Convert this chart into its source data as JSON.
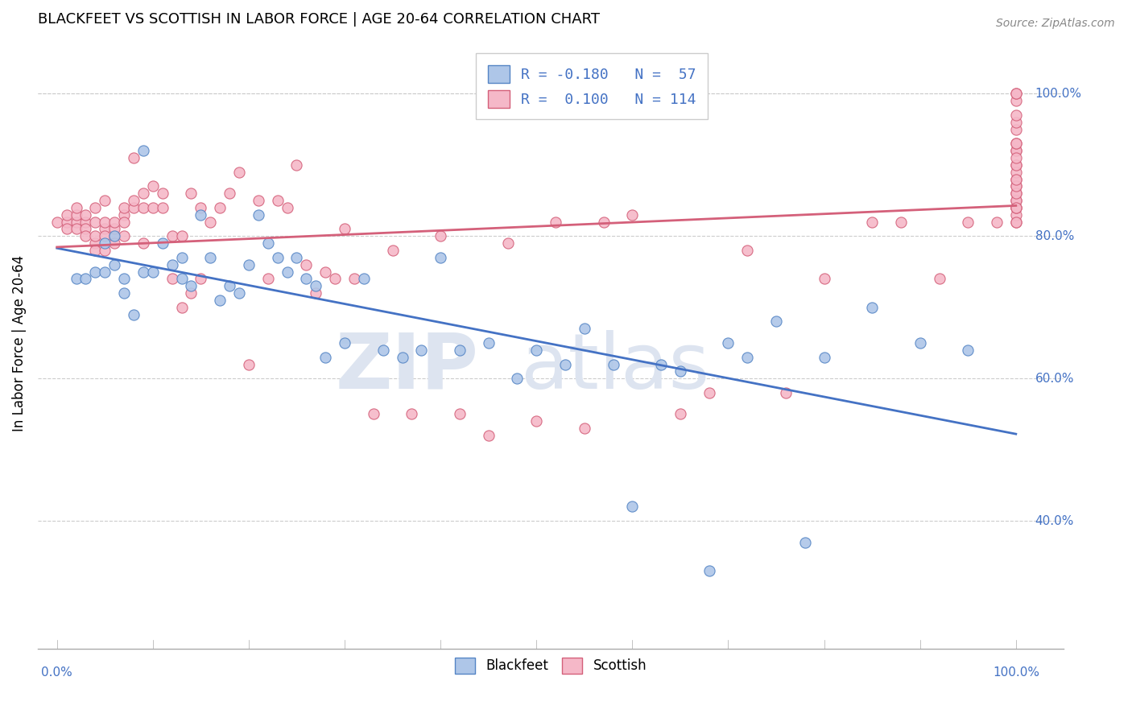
{
  "title": "BLACKFEET VS SCOTTISH IN LABOR FORCE | AGE 20-64 CORRELATION CHART",
  "source": "Source: ZipAtlas.com",
  "ylabel": "In Labor Force | Age 20-64",
  "xlim": [
    -0.02,
    1.05
  ],
  "ylim": [
    0.22,
    1.08
  ],
  "right_yticks": [
    0.4,
    0.6,
    0.8,
    1.0
  ],
  "right_yticklabels": [
    "40.0%",
    "60.0%",
    "80.0%",
    "100.0%"
  ],
  "bottom_xtick_labels_left": "0.0%",
  "bottom_xtick_labels_right": "100.0%",
  "blackfeet_color": "#aec6e8",
  "blackfeet_edge_color": "#5585c5",
  "scottish_color": "#f5b8c8",
  "scottish_edge_color": "#d4607a",
  "blackfeet_line_color": "#4472c4",
  "scottish_line_color": "#d4607a",
  "legend_R_blackfeet": "-0.180",
  "legend_N_blackfeet": "57",
  "legend_R_scottish": "0.100",
  "legend_N_scottish": "114",
  "blackfeet_x": [
    0.02,
    0.03,
    0.04,
    0.05,
    0.05,
    0.06,
    0.06,
    0.07,
    0.07,
    0.08,
    0.09,
    0.09,
    0.1,
    0.11,
    0.12,
    0.13,
    0.13,
    0.14,
    0.15,
    0.16,
    0.17,
    0.18,
    0.19,
    0.2,
    0.21,
    0.22,
    0.23,
    0.24,
    0.25,
    0.26,
    0.27,
    0.28,
    0.3,
    0.32,
    0.34,
    0.36,
    0.38,
    0.4,
    0.42,
    0.45,
    0.48,
    0.5,
    0.53,
    0.55,
    0.58,
    0.6,
    0.63,
    0.65,
    0.68,
    0.7,
    0.72,
    0.75,
    0.78,
    0.8,
    0.85,
    0.9,
    0.95
  ],
  "blackfeet_y": [
    0.74,
    0.74,
    0.75,
    0.75,
    0.79,
    0.76,
    0.8,
    0.72,
    0.74,
    0.69,
    0.92,
    0.75,
    0.75,
    0.79,
    0.76,
    0.77,
    0.74,
    0.73,
    0.83,
    0.77,
    0.71,
    0.73,
    0.72,
    0.76,
    0.83,
    0.79,
    0.77,
    0.75,
    0.77,
    0.74,
    0.73,
    0.63,
    0.65,
    0.74,
    0.64,
    0.63,
    0.64,
    0.77,
    0.64,
    0.65,
    0.6,
    0.64,
    0.62,
    0.67,
    0.62,
    0.42,
    0.62,
    0.61,
    0.33,
    0.65,
    0.63,
    0.68,
    0.37,
    0.63,
    0.7,
    0.65,
    0.64
  ],
  "scottish_x": [
    0.0,
    0.01,
    0.01,
    0.01,
    0.02,
    0.02,
    0.02,
    0.02,
    0.03,
    0.03,
    0.03,
    0.03,
    0.04,
    0.04,
    0.04,
    0.04,
    0.04,
    0.05,
    0.05,
    0.05,
    0.05,
    0.05,
    0.06,
    0.06,
    0.06,
    0.06,
    0.07,
    0.07,
    0.07,
    0.07,
    0.08,
    0.08,
    0.08,
    0.09,
    0.09,
    0.09,
    0.1,
    0.1,
    0.11,
    0.11,
    0.12,
    0.12,
    0.13,
    0.13,
    0.14,
    0.14,
    0.15,
    0.15,
    0.16,
    0.17,
    0.18,
    0.19,
    0.2,
    0.21,
    0.22,
    0.23,
    0.24,
    0.25,
    0.26,
    0.27,
    0.28,
    0.29,
    0.3,
    0.31,
    0.33,
    0.35,
    0.37,
    0.4,
    0.42,
    0.45,
    0.47,
    0.5,
    0.52,
    0.55,
    0.57,
    0.6,
    0.65,
    0.68,
    0.72,
    0.76,
    0.8,
    0.85,
    0.88,
    0.92,
    0.95,
    0.98,
    1.0,
    1.0,
    1.0,
    1.0,
    1.0,
    1.0,
    1.0,
    1.0,
    1.0,
    1.0,
    1.0,
    1.0,
    1.0,
    1.0,
    1.0,
    1.0,
    1.0,
    1.0,
    1.0,
    1.0,
    1.0,
    1.0,
    1.0,
    1.0,
    1.0,
    1.0,
    1.0,
    1.0
  ],
  "scottish_y": [
    0.82,
    0.82,
    0.83,
    0.81,
    0.82,
    0.81,
    0.83,
    0.84,
    0.82,
    0.81,
    0.83,
    0.8,
    0.79,
    0.82,
    0.84,
    0.8,
    0.78,
    0.81,
    0.82,
    0.8,
    0.85,
    0.78,
    0.8,
    0.81,
    0.82,
    0.79,
    0.8,
    0.83,
    0.84,
    0.82,
    0.91,
    0.84,
    0.85,
    0.79,
    0.84,
    0.86,
    0.84,
    0.87,
    0.84,
    0.86,
    0.8,
    0.74,
    0.7,
    0.8,
    0.72,
    0.86,
    0.74,
    0.84,
    0.82,
    0.84,
    0.86,
    0.89,
    0.62,
    0.85,
    0.74,
    0.85,
    0.84,
    0.9,
    0.76,
    0.72,
    0.75,
    0.74,
    0.81,
    0.74,
    0.55,
    0.78,
    0.55,
    0.8,
    0.55,
    0.52,
    0.79,
    0.54,
    0.82,
    0.53,
    0.82,
    0.83,
    0.55,
    0.58,
    0.78,
    0.58,
    0.74,
    0.82,
    0.82,
    0.74,
    0.82,
    0.82,
    0.82,
    0.85,
    0.87,
    0.88,
    0.9,
    0.92,
    0.84,
    0.86,
    0.83,
    0.84,
    0.85,
    0.82,
    0.84,
    0.86,
    0.89,
    0.87,
    0.9,
    0.88,
    0.92,
    0.93,
    0.91,
    0.95,
    0.93,
    0.96,
    0.97,
    0.99,
    1.0,
    1.0
  ]
}
